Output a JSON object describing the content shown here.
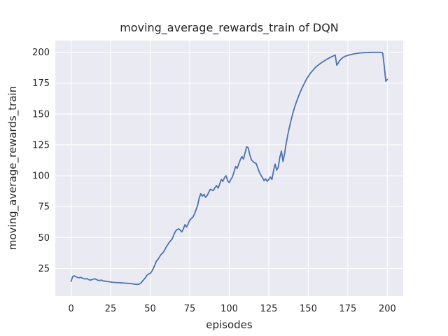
{
  "figure": {
    "title": "moving_average_rewards_train of DQN",
    "xlabel": "episodes",
    "ylabel": "moving_average_rewards_train"
  },
  "chart_data": {
    "type": "line",
    "title": "moving_average_rewards_train of DQN",
    "xlabel": "episodes",
    "ylabel": "moving_average_rewards_train",
    "x_ticks": [
      0,
      25,
      50,
      75,
      100,
      125,
      150,
      175,
      200
    ],
    "y_ticks": [
      25,
      50,
      75,
      100,
      125,
      150,
      175,
      200
    ],
    "xlim": [
      -10,
      210
    ],
    "ylim": [
      2.6,
      209.4
    ],
    "grid": true,
    "legend": false,
    "colors": {
      "line": "#4c72b0",
      "plot_background": "#eaeaf2",
      "grid": "#ffffff",
      "text": "#262626"
    },
    "series": [
      {
        "name": "moving_average_rewards_train",
        "x_start": 0,
        "x_step": 1,
        "values": [
          14.5,
          18.5,
          19.0,
          18.3,
          17.8,
          17.3,
          17.8,
          17.2,
          16.8,
          16.4,
          16.8,
          16.0,
          15.6,
          15.8,
          16.3,
          16.6,
          16.0,
          15.4,
          15.2,
          15.6,
          15.0,
          14.8,
          14.6,
          14.4,
          14.2,
          14.0,
          13.8,
          13.7,
          13.6,
          13.5,
          13.5,
          13.4,
          13.3,
          13.2,
          13.1,
          13.0,
          12.9,
          12.8,
          12.7,
          12.5,
          12.3,
          12.2,
          12.1,
          12.3,
          13.0,
          14.5,
          16.0,
          17.5,
          19.5,
          20.5,
          21.0,
          22.5,
          25.0,
          28.0,
          31.0,
          32.5,
          34.5,
          36.5,
          37.5,
          39.5,
          42.0,
          44.0,
          46.0,
          47.5,
          49.0,
          52.5,
          55.0,
          56.5,
          57.0,
          56.0,
          54.5,
          57.0,
          60.5,
          58.5,
          61.0,
          64.0,
          65.5,
          66.5,
          69.0,
          72.5,
          76.0,
          82.0,
          85.5,
          83.5,
          85.0,
          82.5,
          84.0,
          86.5,
          89.0,
          88.5,
          88.0,
          90.5,
          92.0,
          90.0,
          93.5,
          97.0,
          95.5,
          98.5,
          100.0,
          96.0,
          94.5,
          97.0,
          99.0,
          103.0,
          107.5,
          106.0,
          109.5,
          113.0,
          115.5,
          113.5,
          118.5,
          123.5,
          122.5,
          117.0,
          113.0,
          111.5,
          110.5,
          110.0,
          106.5,
          103.0,
          100.5,
          98.5,
          96.0,
          97.5,
          95.5,
          97.0,
          99.0,
          97.0,
          104.0,
          109.5,
          104.5,
          107.0,
          115.0,
          120.0,
          111.5,
          118.0,
          126.0,
          133.0,
          139.0,
          144.5,
          149.5,
          154.0,
          158.0,
          161.5,
          165.0,
          168.0,
          171.0,
          173.5,
          176.0,
          178.5,
          180.5,
          182.5,
          184.0,
          185.5,
          187.0,
          188.2,
          189.3,
          190.3,
          191.2,
          192.1,
          192.9,
          193.7,
          194.5,
          195.2,
          195.9,
          196.5,
          197.1,
          197.7,
          189.5,
          191.5,
          193.5,
          194.8,
          195.8,
          196.5,
          197.0,
          197.4,
          197.8,
          198.1,
          198.4,
          198.7,
          198.9,
          199.1,
          199.3,
          199.4,
          199.5,
          199.6,
          199.7,
          199.7,
          199.8,
          199.8,
          199.9,
          199.9,
          199.9,
          199.9,
          199.9,
          199.9,
          199.8,
          199.5,
          189.0,
          176.5,
          178.0
        ]
      }
    ]
  }
}
